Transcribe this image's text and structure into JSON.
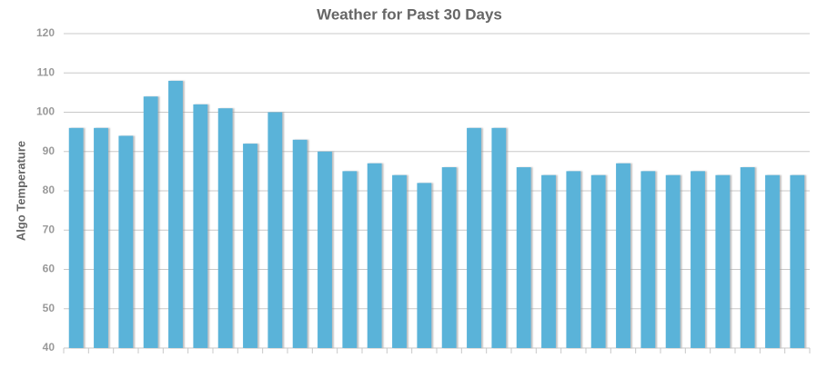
{
  "chart_data": {
    "type": "bar",
    "title": "Weather for Past 30 Days",
    "y_label": "Algo Temperature",
    "categories": [
      null,
      null,
      null,
      null,
      null,
      null,
      null,
      null,
      null,
      null,
      null,
      null,
      null,
      null,
      null,
      null,
      null,
      null,
      null,
      null,
      null,
      null,
      null,
      null,
      null,
      null,
      null,
      null,
      null,
      null
    ],
    "values": [
      96,
      96,
      94,
      104,
      108,
      102,
      101,
      92,
      100,
      93,
      90,
      85,
      87,
      84,
      82,
      86,
      96,
      96,
      86,
      84,
      85,
      84,
      87,
      85,
      84,
      85,
      84,
      86,
      84,
      84
    ],
    "color": "#5ab3d9",
    "ylim": [
      40,
      120
    ],
    "yticks": [
      40,
      50,
      60,
      70,
      80,
      90,
      100,
      110,
      120
    ],
    "grid": true
  }
}
